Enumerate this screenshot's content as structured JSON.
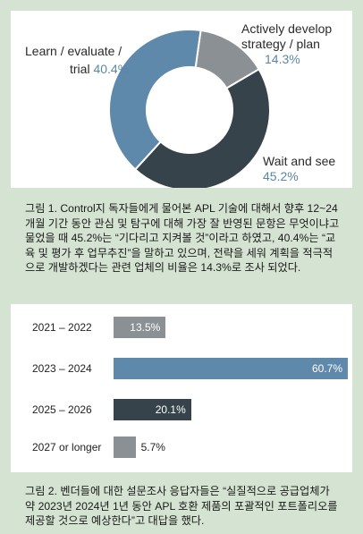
{
  "chart_data": [
    {
      "type": "pie",
      "labels": [
        "Actively develop strategy / plan",
        "Wait and see",
        "Learn / evaluate / trial"
      ],
      "values": [
        14.3,
        45.2,
        40.4
      ],
      "colors": [
        "#8a9094",
        "#37434a",
        "#5f89ab"
      ],
      "label_lines": [
        {
          "line1": "Actively develop",
          "line2": "strategy / plan",
          "pct": "14.3%"
        },
        {
          "line1": "Wait and see",
          "line2": "",
          "pct": "45.2%"
        },
        {
          "line1": "Learn / evaluate /",
          "line2": "trial",
          "pct": "40.4%"
        }
      ],
      "caption": "그림 1. Control지 독자들에게 물어본 APL 기술에 대해서 향후 12~24개월 기간 동안 관심 및 탐구에 대해 가장 잘 반영된 문항은 무엇이냐고 물었을 때 45.2%는 “기다리고 지켜볼 것”이라고 하였고, 40.4%는 “교육 및 평가 후 업무추진”을 말하고 있으며, 전략을 세워 계획을 적극적으로 개발하겠다는 관련 업체의 비율은 14.3%로 조사 되었다."
    },
    {
      "type": "bar",
      "categories": [
        "2021 – 2022",
        "2023 – 2024",
        "2025 – 2026",
        "2027 or longer"
      ],
      "values": [
        13.5,
        60.7,
        20.1,
        5.7
      ],
      "value_labels": [
        "13.5%",
        "60.7%",
        "20.1%",
        "5.7%"
      ],
      "colors": [
        "#8a9094",
        "#5f89ab",
        "#37434a",
        "#8a9094"
      ],
      "caption": "그림 2. 벤더들에 대한 설문조사 응답자들은 “실질적으로 공급업체가 약 2023년 2024년 1년 동안 APL 호환 제품의 포괄적인 포트폴리오를 제공할 것으로 예상한다”고 대답을 했다."
    }
  ],
  "colors": {
    "page_background": "#d5e3d2",
    "pct_text": "#5b86a6"
  }
}
